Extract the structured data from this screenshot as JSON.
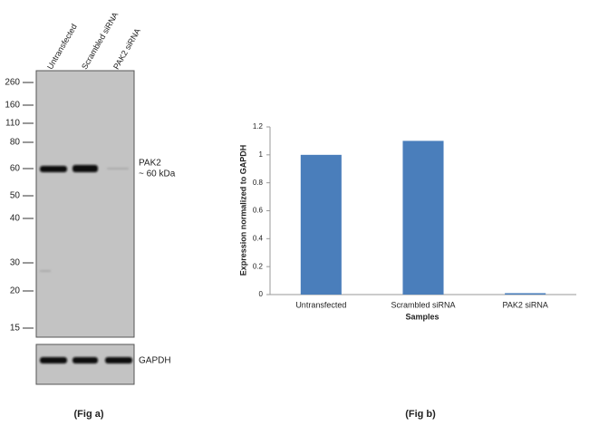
{
  "blot": {
    "lanes": [
      "Untransfected",
      "Scrambled siRNA",
      "PAK2 siRNA"
    ],
    "markers": [
      260,
      160,
      110,
      80,
      60,
      50,
      40,
      30,
      20,
      15
    ],
    "band_label": "PAK2",
    "band_size": "~ 60 kDa",
    "loading_control": "GAPDH",
    "caption": "(Fig a)"
  },
  "chart_data": {
    "type": "bar",
    "categories": [
      "Untransfected",
      "Scrambled siRNA",
      "PAK2 siRNA"
    ],
    "values": [
      1,
      1.1,
      0.01
    ],
    "color": "#4a7ebb",
    "ylim": [
      0,
      1.2
    ],
    "yticks": [
      0,
      0.2,
      0.4,
      0.6,
      0.8,
      1,
      1.2
    ],
    "y_label": "Expression normalized to GAPDH",
    "x_label": "Samples",
    "caption": "(Fig b)"
  }
}
